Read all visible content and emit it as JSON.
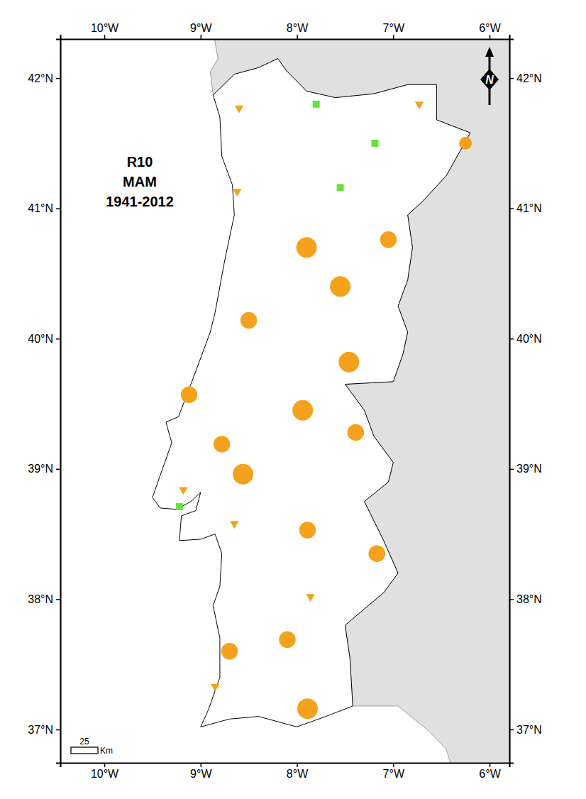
{
  "chart_data": {
    "type": "map",
    "title": [
      "R10",
      "MAM",
      "1941-2012"
    ],
    "north_label": "N",
    "scale_bar": {
      "value": 25,
      "unit": "Km"
    },
    "xlim": [
      -10.457,
      -5.794
    ],
    "ylim": [
      36.744,
      42.3
    ],
    "xticks": [
      {
        "value": -10,
        "label": "10°W"
      },
      {
        "value": -9,
        "label": "9°W"
      },
      {
        "value": -8,
        "label": "8°W"
      },
      {
        "value": -7,
        "label": "7°W"
      },
      {
        "value": -6,
        "label": "6°W"
      }
    ],
    "yticks": [
      {
        "value": 37,
        "label": "37°N"
      },
      {
        "value": 38,
        "label": "38°N"
      },
      {
        "value": 39,
        "label": "39°N"
      },
      {
        "value": 40,
        "label": "40°N"
      },
      {
        "value": 41,
        "label": "41°N"
      },
      {
        "value": 42,
        "label": "42°N"
      }
    ],
    "stations": [
      {
        "lon": -8.6,
        "lat": 41.77,
        "marker": "triangle-down",
        "color": "#f4a21d",
        "size": 1
      },
      {
        "lon": -6.73,
        "lat": 41.8,
        "marker": "triangle-down",
        "color": "#f4a21d",
        "size": 1
      },
      {
        "lon": -8.62,
        "lat": 41.13,
        "marker": "triangle-down",
        "color": "#f4a21d",
        "size": 1
      },
      {
        "lon": -9.18,
        "lat": 38.84,
        "marker": "triangle-down",
        "color": "#f4a21d",
        "size": 1
      },
      {
        "lon": -8.65,
        "lat": 38.58,
        "marker": "triangle-down",
        "color": "#f4a21d",
        "size": 1
      },
      {
        "lon": -7.86,
        "lat": 38.02,
        "marker": "triangle-down",
        "color": "#f4a21d",
        "size": 1
      },
      {
        "lon": -8.85,
        "lat": 37.33,
        "marker": "triangle-down",
        "color": "#f4a21d",
        "size": 1
      },
      {
        "lon": -7.8,
        "lat": 41.8,
        "marker": "square",
        "color": "#66e23a",
        "size": 1
      },
      {
        "lon": -7.19,
        "lat": 41.5,
        "marker": "square",
        "color": "#66e23a",
        "size": 1
      },
      {
        "lon": -7.55,
        "lat": 41.16,
        "marker": "square",
        "color": "#66e23a",
        "size": 1
      },
      {
        "lon": -9.22,
        "lat": 38.71,
        "marker": "square",
        "color": "#66e23a",
        "size": 1
      },
      {
        "lon": -7.9,
        "lat": 40.7,
        "marker": "circle",
        "color": "#f4a21d",
        "size": 3
      },
      {
        "lon": -7.55,
        "lat": 40.4,
        "marker": "circle",
        "color": "#f4a21d",
        "size": 3
      },
      {
        "lon": -7.46,
        "lat": 39.82,
        "marker": "circle",
        "color": "#f4a21d",
        "size": 3
      },
      {
        "lon": -7.94,
        "lat": 39.45,
        "marker": "circle",
        "color": "#f4a21d",
        "size": 3
      },
      {
        "lon": -8.56,
        "lat": 38.96,
        "marker": "circle",
        "color": "#f4a21d",
        "size": 3
      },
      {
        "lon": -7.89,
        "lat": 37.16,
        "marker": "circle",
        "color": "#f4a21d",
        "size": 3
      },
      {
        "lon": -6.25,
        "lat": 41.5,
        "marker": "circle",
        "color": "#f4a21d",
        "size": 1
      },
      {
        "lon": -7.05,
        "lat": 40.76,
        "marker": "circle",
        "color": "#f4a21d",
        "size": 2
      },
      {
        "lon": -8.5,
        "lat": 40.14,
        "marker": "circle",
        "color": "#f4a21d",
        "size": 2
      },
      {
        "lon": -9.12,
        "lat": 39.57,
        "marker": "circle",
        "color": "#f4a21d",
        "size": 2
      },
      {
        "lon": -8.78,
        "lat": 39.19,
        "marker": "circle",
        "color": "#f4a21d",
        "size": 2
      },
      {
        "lon": -7.39,
        "lat": 39.28,
        "marker": "circle",
        "color": "#f4a21d",
        "size": 2
      },
      {
        "lon": -7.89,
        "lat": 38.53,
        "marker": "circle",
        "color": "#f4a21d",
        "size": 2
      },
      {
        "lon": -7.17,
        "lat": 38.35,
        "marker": "circle",
        "color": "#f4a21d",
        "size": 2
      },
      {
        "lon": -8.7,
        "lat": 37.6,
        "marker": "circle",
        "color": "#f4a21d",
        "size": 2
      },
      {
        "lon": -8.1,
        "lat": 37.69,
        "marker": "circle",
        "color": "#f4a21d",
        "size": 2
      }
    ]
  }
}
